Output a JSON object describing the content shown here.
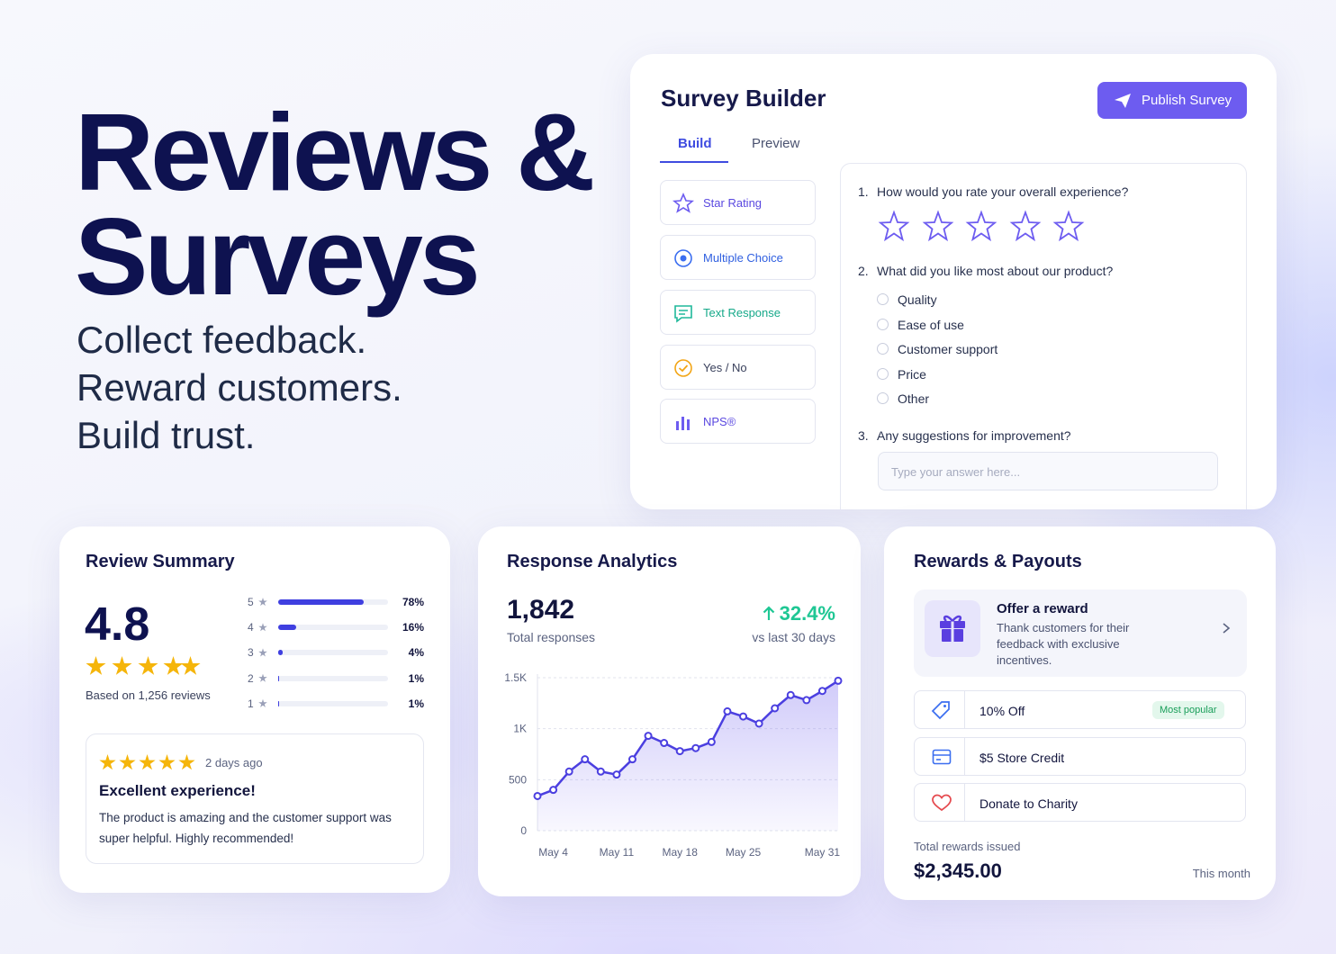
{
  "hero": {
    "title_lines": [
      "Reviews &",
      "Surveys"
    ],
    "taglines": [
      "Collect feedback.",
      "Reward customers.",
      "Build trust."
    ]
  },
  "survey_builder": {
    "title": "Survey Builder",
    "publish_button": "Publish Survey",
    "tabs": [
      "Build",
      "Preview"
    ],
    "question_types": [
      "Star Rating",
      "Multiple Choice",
      "Text Response",
      "Yes / No",
      "NPS®"
    ],
    "questions": [
      {
        "number": "1.",
        "text": "How would you rate your overall experience?"
      },
      {
        "number": "2.",
        "text": "What did you like most about our product?",
        "options": [
          "Quality",
          "Ease of use",
          "Customer support",
          "Price",
          "Other"
        ]
      },
      {
        "number": "3.",
        "text": "Any suggestions for improvement?",
        "placeholder": "Type your answer here..."
      }
    ]
  },
  "review_summary": {
    "title": "Review Summary",
    "rating": "4.8",
    "based_on": "Based on 1,256 reviews",
    "distribution": {
      "categories": [
        "5",
        "4",
        "3",
        "2",
        "1"
      ],
      "values": [
        78,
        16,
        4,
        1,
        1
      ],
      "value_labels": [
        "78%",
        "16%",
        "4%",
        "1%",
        "1%"
      ],
      "xlim": [
        0,
        100
      ],
      "color": "#3f3fe0"
    },
    "review": {
      "time": "2 days ago",
      "title": "Excellent experience!",
      "body": "The product is amazing and the customer support was super helpful. Highly recommended!"
    }
  },
  "response_analytics": {
    "title": "Response Analytics",
    "total": "1,842",
    "total_label": "Total responses",
    "change": "32.4%",
    "change_label": "vs last 30 days"
  },
  "chart_data": {
    "type": "line",
    "categories": [
      null,
      "May 4",
      null,
      null,
      null,
      "May 11",
      null,
      null,
      null,
      "May 18",
      null,
      null,
      null,
      "May 25",
      null,
      null,
      null,
      null,
      "May 31",
      null
    ],
    "values": [
      340,
      400,
      580,
      700,
      580,
      550,
      700,
      930,
      860,
      780,
      810,
      870,
      1170,
      1120,
      1050,
      1200,
      1330,
      1280,
      1370,
      1470
    ],
    "color": "#4b3fe0",
    "ylim": [
      0,
      1500
    ],
    "yticks": [
      0,
      500,
      {
        "value": 1000,
        "label": "1K"
      },
      {
        "value": 1500,
        "label": "1.5K"
      }
    ],
    "grid": true
  },
  "rewards": {
    "title": "Rewards & Payouts",
    "offer_title": "Offer a reward",
    "offer_description": "Thank customers for their feedback with exclusive incentives.",
    "options": [
      {
        "label": "10% Off",
        "badge": "Most popular"
      },
      {
        "label": "$5 Store Credit"
      },
      {
        "label": "Donate to Charity"
      }
    ],
    "total_label": "Total rewards issued",
    "total": "$2,345.00",
    "period": "This month"
  }
}
